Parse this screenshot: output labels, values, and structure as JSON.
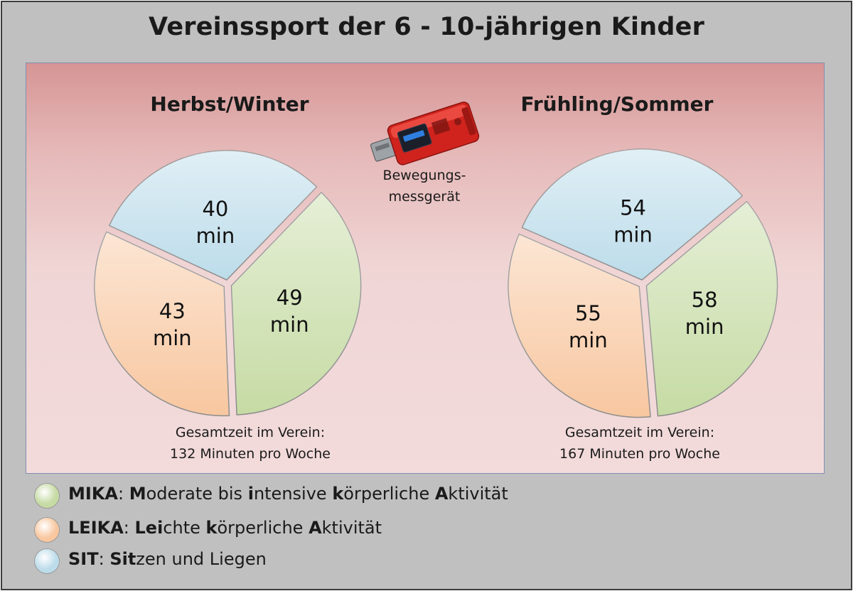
{
  "title": "Vereinssport der 6 - 10-jährigen Kinder",
  "device": {
    "icon": "usb-accelerometer-icon",
    "caption_line1": "Bewegungs-",
    "caption_line2": "messgerät"
  },
  "colors": {
    "mika": "#c6dba4",
    "leika": "#f8c7a0",
    "sit": "#bcdcea",
    "panel_top": "#d69595",
    "frame": "#c0c0c0"
  },
  "chart_data": [
    {
      "type": "pie",
      "title": "Herbst/Winter",
      "unit": "min",
      "categories": [
        "MIKA",
        "LEIKA",
        "SIT"
      ],
      "values": [
        49,
        43,
        40
      ],
      "total_line1": "Gesamtzeit im Verein:",
      "total_line2": "132 Minuten pro Woche"
    },
    {
      "type": "pie",
      "title": "Frühling/Sommer",
      "unit": "min",
      "categories": [
        "MIKA",
        "LEIKA",
        "SIT"
      ],
      "values": [
        58,
        55,
        54
      ],
      "total_line1": "Gesamtzeit im Verein:",
      "total_line2": "167 Minuten pro Woche"
    }
  ],
  "legend": [
    {
      "key": "MIKA",
      "parts": [
        [
          "b",
          "MIKA"
        ],
        [
          "n",
          ": "
        ],
        [
          "b",
          "M"
        ],
        [
          "n",
          "oderate bis "
        ],
        [
          "b",
          "i"
        ],
        [
          "n",
          "ntensive "
        ],
        [
          "b",
          "k"
        ],
        [
          "n",
          "örperliche "
        ],
        [
          "b",
          "A"
        ],
        [
          "n",
          "ktivität"
        ]
      ]
    },
    {
      "key": "LEIKA",
      "parts": [
        [
          "b",
          "LEIKA"
        ],
        [
          "n",
          ": "
        ],
        [
          "b",
          "Lei"
        ],
        [
          "n",
          "chte "
        ],
        [
          "b",
          "k"
        ],
        [
          "n",
          "örperliche "
        ],
        [
          "b",
          "A"
        ],
        [
          "n",
          "ktivität"
        ]
      ]
    },
    {
      "key": "SIT",
      "parts": [
        [
          "b",
          "SIT"
        ],
        [
          "n",
          ": "
        ],
        [
          "b",
          "Sit"
        ],
        [
          "n",
          "zen und Liegen"
        ]
      ]
    }
  ]
}
